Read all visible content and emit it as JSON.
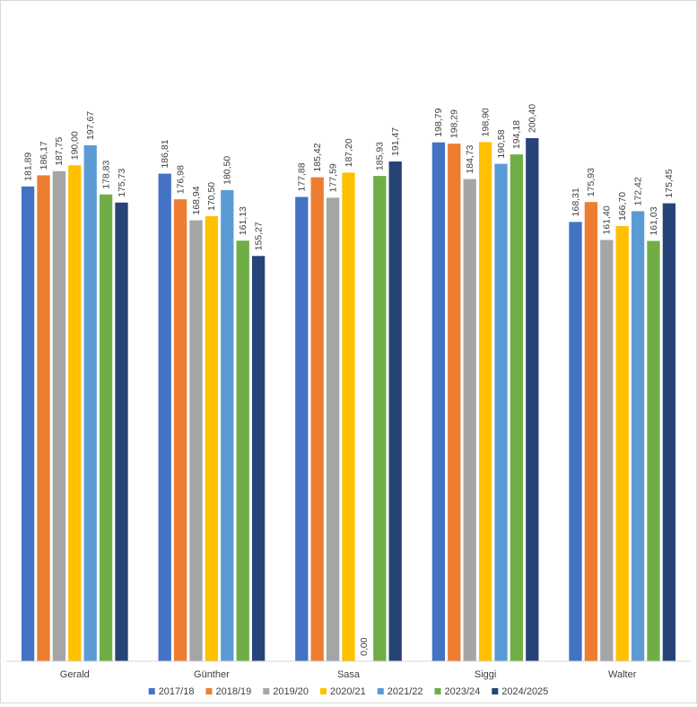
{
  "chart_data": {
    "type": "bar",
    "title": "",
    "xlabel": "",
    "ylabel": "",
    "ylim": [
      0,
      200.4
    ],
    "grid": false,
    "legend_position": "bottom",
    "categories": [
      "Gerald",
      "Günther",
      "Sasa",
      "Siggi",
      "Walter"
    ],
    "series": [
      {
        "name": "2017/18",
        "color": "#4472C4",
        "values": [
          181.89,
          186.81,
          177.88,
          198.79,
          168.31
        ],
        "labels": [
          "181,89",
          "186,81",
          "177,88",
          "198,79",
          "168,31"
        ]
      },
      {
        "name": "2018/19",
        "color": "#ED7D31",
        "values": [
          186.17,
          176.98,
          185.42,
          198.29,
          175.93
        ],
        "labels": [
          "186,17",
          "176,98",
          "185,42",
          "198,29",
          "175,93"
        ]
      },
      {
        "name": "2019/20",
        "color": "#A5A5A5",
        "values": [
          187.75,
          168.94,
          177.59,
          184.73,
          161.4
        ],
        "labels": [
          "187,75",
          "168,94",
          "177,59",
          "184,73",
          "161,40"
        ]
      },
      {
        "name": "2020/21",
        "color": "#FFC000",
        "values": [
          190.0,
          170.5,
          187.2,
          198.9,
          166.7
        ],
        "labels": [
          "190,00",
          "170,50",
          "187,20",
          "198,90",
          "166,70"
        ]
      },
      {
        "name": "2021/22",
        "color": "#5B9BD5",
        "values": [
          197.67,
          180.5,
          0.0,
          190.58,
          172.42
        ],
        "labels": [
          "197,67",
          "180,50",
          "0,00",
          "190,58",
          "172,42"
        ]
      },
      {
        "name": "2023/24",
        "color": "#70AD47",
        "values": [
          178.83,
          161.13,
          185.93,
          194.18,
          161.03
        ],
        "labels": [
          "178,83",
          "161,13",
          "185,93",
          "194,18",
          "161,03"
        ]
      },
      {
        "name": "2024/2025",
        "color": "#264478",
        "values": [
          175.73,
          155.27,
          191.47,
          200.4,
          175.45
        ],
        "labels": [
          "175,73",
          "155,27",
          "191,47",
          "200,40",
          "175,45"
        ]
      }
    ]
  }
}
